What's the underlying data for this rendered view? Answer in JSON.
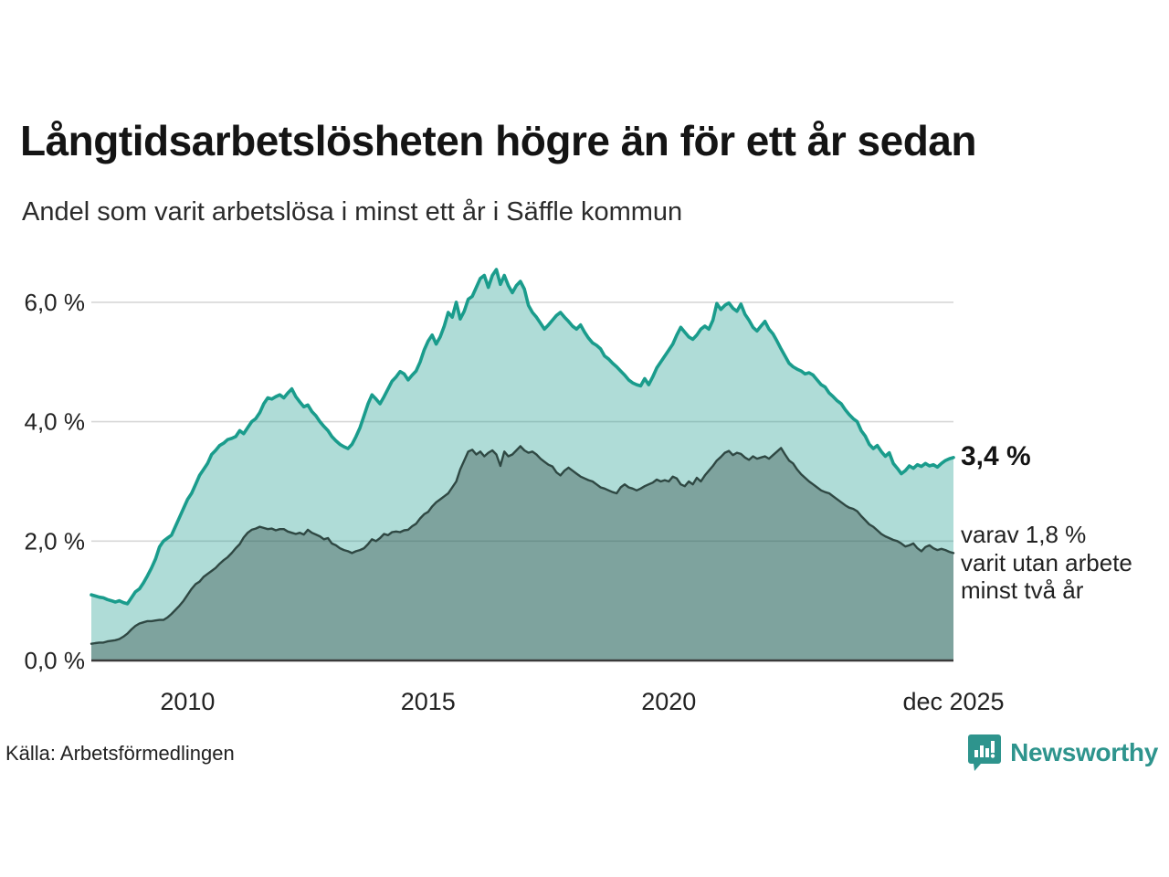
{
  "header": {
    "title": "Långtidsarbetslösheten högre än för ett år sedan",
    "subtitle": "Andel som varit arbetslösa i minst ett år i Säffle kommun"
  },
  "annotations": {
    "latest_total_label": "3,4 %",
    "note_line1": "varav 1,8 %",
    "note_line2": "varit utan arbete",
    "note_line3": "minst två år"
  },
  "footer": {
    "source": "Källa: Arbetsförmedlingen",
    "logo_text": "Newsworthy"
  },
  "colors": {
    "total_line": "#1a9c8c",
    "total_fill": "rgba(26,156,140,0.35)",
    "two_year_line": "#2f4843",
    "two_year_fill": "rgba(47,72,67,0.38)",
    "gridline": "#d7d7d7",
    "axis": "#3a3a3a",
    "logo_teal": "#2e948d"
  },
  "chart_data": {
    "type": "area",
    "x_start": "2008-01",
    "x_end": "2025-12",
    "interval": "monthly",
    "ylim": [
      0,
      6.62
    ],
    "grid": true,
    "y_tick_values": [
      0,
      2,
      4,
      6
    ],
    "y_ticks": [
      "0,0 %",
      "2,0 %",
      "4,0 %",
      "6,0 %"
    ],
    "x_tick_indices": [
      24,
      84,
      144,
      215
    ],
    "x_ticks": [
      "2010",
      "2015",
      "2020",
      "dec 2025"
    ],
    "series": [
      {
        "name": "Arbetslösa minst ett år (andel, %)",
        "end_value": 3.4,
        "values": [
          1.1,
          1.08,
          1.06,
          1.05,
          1.02,
          1.0,
          0.98,
          1.0,
          0.97,
          0.95,
          1.05,
          1.15,
          1.2,
          1.3,
          1.42,
          1.55,
          1.7,
          1.9,
          2.0,
          2.05,
          2.1,
          2.25,
          2.4,
          2.55,
          2.7,
          2.8,
          2.95,
          3.1,
          3.2,
          3.3,
          3.45,
          3.52,
          3.6,
          3.64,
          3.7,
          3.72,
          3.75,
          3.85,
          3.8,
          3.9,
          4.0,
          4.05,
          4.15,
          4.3,
          4.4,
          4.38,
          4.42,
          4.45,
          4.4,
          4.48,
          4.55,
          4.42,
          4.33,
          4.25,
          4.28,
          4.17,
          4.1,
          4.0,
          3.92,
          3.85,
          3.75,
          3.68,
          3.62,
          3.58,
          3.55,
          3.62,
          3.75,
          3.9,
          4.1,
          4.3,
          4.45,
          4.38,
          4.3,
          4.42,
          4.55,
          4.68,
          4.75,
          4.84,
          4.8,
          4.7,
          4.78,
          4.85,
          5.0,
          5.2,
          5.35,
          5.45,
          5.3,
          5.42,
          5.6,
          5.83,
          5.75,
          6.0,
          5.72,
          5.85,
          6.05,
          6.1,
          6.25,
          6.4,
          6.45,
          6.25,
          6.45,
          6.55,
          6.3,
          6.45,
          6.28,
          6.16,
          6.28,
          6.35,
          6.22,
          5.95,
          5.83,
          5.75,
          5.65,
          5.55,
          5.62,
          5.7,
          5.78,
          5.83,
          5.75,
          5.68,
          5.6,
          5.55,
          5.62,
          5.5,
          5.4,
          5.32,
          5.28,
          5.22,
          5.1,
          5.05,
          4.98,
          4.92,
          4.85,
          4.78,
          4.7,
          4.65,
          4.62,
          4.6,
          4.72,
          4.62,
          4.75,
          4.9,
          5.0,
          5.1,
          5.2,
          5.3,
          5.45,
          5.58,
          5.5,
          5.42,
          5.38,
          5.45,
          5.55,
          5.6,
          5.55,
          5.7,
          5.98,
          5.88,
          5.95,
          5.99,
          5.9,
          5.85,
          5.97,
          5.8,
          5.7,
          5.58,
          5.52,
          5.6,
          5.68,
          5.55,
          5.47,
          5.35,
          5.22,
          5.1,
          4.98,
          4.92,
          4.88,
          4.85,
          4.8,
          4.82,
          4.78,
          4.7,
          4.62,
          4.58,
          4.48,
          4.42,
          4.35,
          4.3,
          4.2,
          4.12,
          4.05,
          4.0,
          3.85,
          3.76,
          3.62,
          3.55,
          3.6,
          3.5,
          3.42,
          3.48,
          3.3,
          3.22,
          3.13,
          3.18,
          3.26,
          3.22,
          3.28,
          3.25,
          3.3,
          3.26,
          3.28,
          3.24,
          3.3,
          3.35,
          3.38,
          3.4
        ]
      },
      {
        "name": "Varav utan arbete minst två år (andel, %)",
        "end_value": 1.8,
        "values": [
          0.28,
          0.29,
          0.3,
          0.3,
          0.32,
          0.33,
          0.34,
          0.36,
          0.4,
          0.45,
          0.52,
          0.58,
          0.62,
          0.64,
          0.66,
          0.66,
          0.67,
          0.68,
          0.68,
          0.72,
          0.78,
          0.85,
          0.92,
          1.0,
          1.1,
          1.2,
          1.28,
          1.32,
          1.4,
          1.45,
          1.5,
          1.55,
          1.62,
          1.68,
          1.73,
          1.8,
          1.88,
          1.95,
          2.06,
          2.14,
          2.19,
          2.21,
          2.24,
          2.22,
          2.2,
          2.21,
          2.18,
          2.2,
          2.2,
          2.16,
          2.14,
          2.12,
          2.14,
          2.11,
          2.19,
          2.14,
          2.11,
          2.08,
          2.03,
          2.05,
          1.96,
          1.93,
          1.88,
          1.85,
          1.83,
          1.8,
          1.83,
          1.85,
          1.88,
          1.95,
          2.03,
          2.0,
          2.05,
          2.12,
          2.1,
          2.15,
          2.16,
          2.15,
          2.18,
          2.19,
          2.25,
          2.29,
          2.38,
          2.45,
          2.49,
          2.58,
          2.65,
          2.7,
          2.75,
          2.8,
          2.9,
          3.0,
          3.2,
          3.35,
          3.5,
          3.53,
          3.45,
          3.5,
          3.42,
          3.48,
          3.52,
          3.45,
          3.26,
          3.5,
          3.42,
          3.45,
          3.52,
          3.59,
          3.52,
          3.48,
          3.5,
          3.45,
          3.38,
          3.33,
          3.28,
          3.25,
          3.15,
          3.1,
          3.18,
          3.23,
          3.18,
          3.13,
          3.08,
          3.05,
          3.02,
          3.0,
          2.95,
          2.9,
          2.88,
          2.85,
          2.82,
          2.8,
          2.9,
          2.95,
          2.9,
          2.88,
          2.85,
          2.88,
          2.92,
          2.95,
          2.98,
          3.03,
          3.0,
          3.02,
          3.0,
          3.08,
          3.05,
          2.95,
          2.92,
          3.0,
          2.95,
          3.06,
          3.0,
          3.1,
          3.18,
          3.26,
          3.35,
          3.41,
          3.48,
          3.51,
          3.44,
          3.48,
          3.46,
          3.4,
          3.36,
          3.42,
          3.38,
          3.4,
          3.42,
          3.38,
          3.44,
          3.5,
          3.56,
          3.45,
          3.35,
          3.3,
          3.2,
          3.12,
          3.06,
          3.0,
          2.95,
          2.9,
          2.85,
          2.82,
          2.8,
          2.75,
          2.7,
          2.65,
          2.6,
          2.56,
          2.54,
          2.5,
          2.42,
          2.35,
          2.28,
          2.24,
          2.18,
          2.12,
          2.08,
          2.05,
          2.02,
          2.0,
          1.96,
          1.91,
          1.93,
          1.96,
          1.88,
          1.83,
          1.9,
          1.93,
          1.88,
          1.85,
          1.87,
          1.85,
          1.82,
          1.8
        ]
      }
    ]
  }
}
